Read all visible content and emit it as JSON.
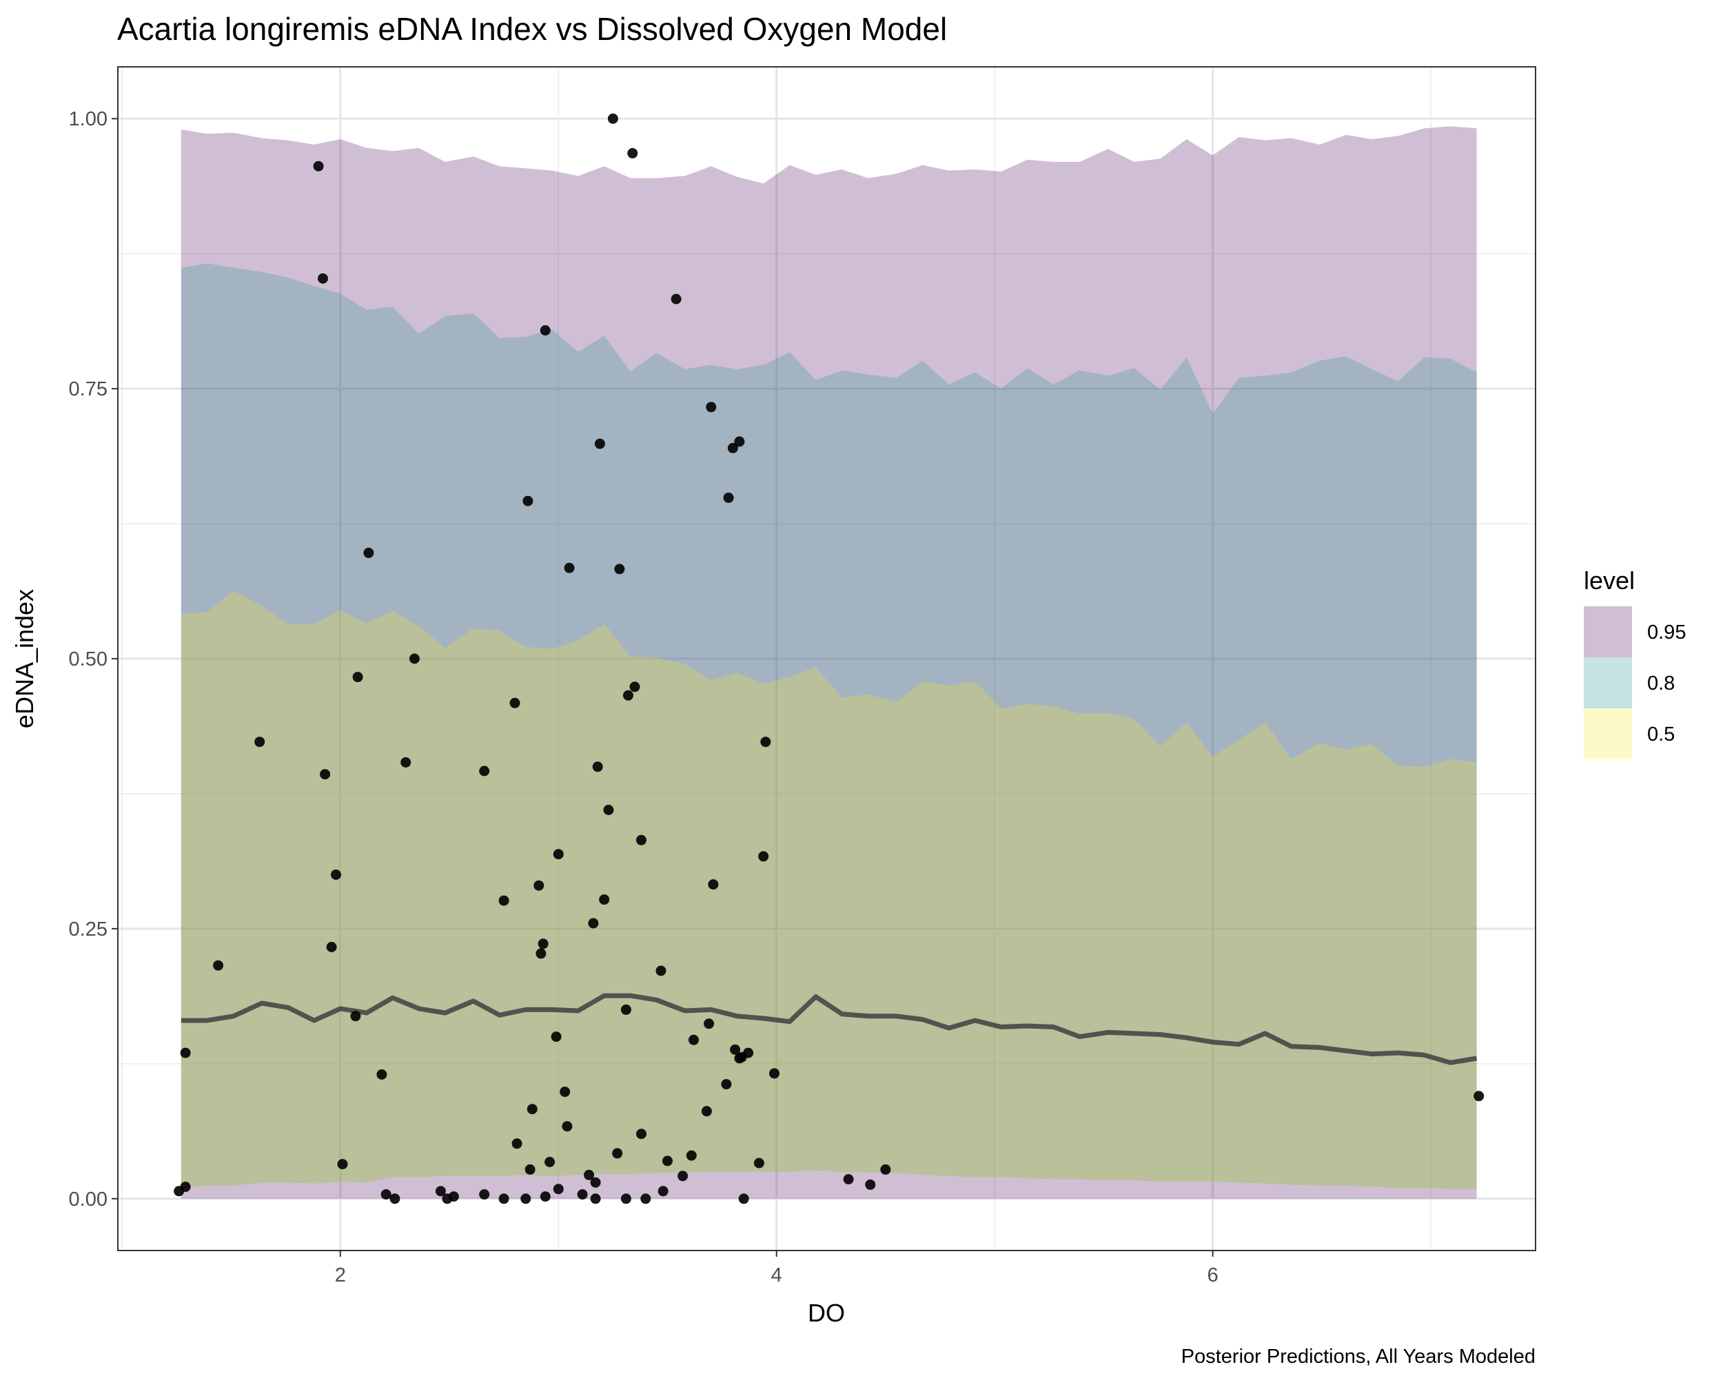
{
  "chart_data": {
    "type": "area",
    "title": "Acartia longiremis eDNA Index vs Dissolved Oxygen Model",
    "xlabel": "DO",
    "ylabel": "eDNA_index",
    "caption": "Posterior Predictions, All Years Modeled",
    "xlim": [
      0.98,
      7.48
    ],
    "ylim": [
      -0.048,
      1.048
    ],
    "x_ticks": [
      2,
      4,
      6
    ],
    "x_tick_labels": [
      "2",
      "4",
      "6"
    ],
    "y_ticks": [
      0.0,
      0.25,
      0.5,
      0.75,
      1.0
    ],
    "y_tick_labels": [
      "0.00",
      "0.25",
      "0.50",
      "0.75",
      "1.00"
    ],
    "grid": true,
    "legend": {
      "title": "level",
      "position": "right",
      "entries": [
        {
          "label": "0.95",
          "color": "#440154"
        },
        {
          "label": "0.8",
          "color": "#21908c"
        },
        {
          "label": "0.5",
          "color": "#fde725"
        }
      ]
    },
    "band_alpha": 0.25,
    "line_color": "#404040",
    "point_color": "#000000",
    "x": [
      1.27,
      1.39,
      1.51,
      1.64,
      1.76,
      1.88,
      2.0,
      2.12,
      2.24,
      2.36,
      2.48,
      2.61,
      2.73,
      2.85,
      2.97,
      3.09,
      3.21,
      3.33,
      3.45,
      3.58,
      3.7,
      3.82,
      3.94,
      4.06,
      4.18,
      4.3,
      4.42,
      4.55,
      4.67,
      4.79,
      4.91,
      5.03,
      5.15,
      5.27,
      5.39,
      5.52,
      5.64,
      5.76,
      5.88,
      6.0,
      6.12,
      6.24,
      6.36,
      6.49,
      6.61,
      6.73,
      6.85,
      6.97,
      7.09,
      7.21
    ],
    "bands": [
      {
        "level": "0.95",
        "color": "#440154",
        "lower": [
          0.0,
          0.0,
          0.0,
          0.0,
          0.0,
          0.0,
          0.0,
          0.0,
          0.0,
          0.0,
          0.0,
          0.0,
          0.0,
          0.0,
          0.0,
          0.0,
          0.0,
          0.0,
          0.0,
          0.0,
          0.0,
          0.0,
          0.0,
          0.0,
          0.0,
          0.0,
          0.0,
          0.0,
          0.0,
          0.0,
          0.0,
          0.0,
          0.0,
          0.0,
          0.0,
          0.0,
          0.0,
          0.0,
          0.0,
          0.0,
          0.0,
          0.0,
          0.0,
          0.0,
          0.0,
          0.0,
          0.0,
          0.0,
          0.0,
          0.0
        ],
        "upper": [
          0.99,
          0.986,
          0.987,
          0.982,
          0.98,
          0.976,
          0.981,
          0.973,
          0.97,
          0.973,
          0.96,
          0.965,
          0.956,
          0.954,
          0.952,
          0.947,
          0.956,
          0.945,
          0.945,
          0.947,
          0.956,
          0.946,
          0.94,
          0.957,
          0.948,
          0.953,
          0.945,
          0.949,
          0.957,
          0.952,
          0.953,
          0.951,
          0.962,
          0.96,
          0.96,
          0.972,
          0.96,
          0.963,
          0.981,
          0.966,
          0.983,
          0.98,
          0.982,
          0.976,
          0.985,
          0.981,
          0.984,
          0.991,
          0.993,
          0.991
        ]
      },
      {
        "level": "0.8",
        "color": "#21908c",
        "lower": [
          0.01,
          0.012,
          0.012,
          0.015,
          0.015,
          0.014,
          0.016,
          0.015,
          0.02,
          0.02,
          0.021,
          0.021,
          0.021,
          0.022,
          0.021,
          0.022,
          0.023,
          0.023,
          0.024,
          0.024,
          0.025,
          0.025,
          0.025,
          0.025,
          0.026,
          0.025,
          0.024,
          0.024,
          0.022,
          0.021,
          0.02,
          0.02,
          0.019,
          0.018,
          0.018,
          0.017,
          0.017,
          0.016,
          0.016,
          0.016,
          0.015,
          0.014,
          0.013,
          0.012,
          0.012,
          0.011,
          0.01,
          0.01,
          0.009,
          0.009
        ],
        "upper": [
          0.862,
          0.866,
          0.862,
          0.858,
          0.853,
          0.845,
          0.838,
          0.823,
          0.826,
          0.801,
          0.817,
          0.82,
          0.797,
          0.798,
          0.805,
          0.784,
          0.799,
          0.766,
          0.783,
          0.768,
          0.772,
          0.768,
          0.772,
          0.784,
          0.758,
          0.767,
          0.763,
          0.76,
          0.776,
          0.754,
          0.765,
          0.75,
          0.769,
          0.754,
          0.767,
          0.762,
          0.769,
          0.749,
          0.779,
          0.727,
          0.76,
          0.762,
          0.765,
          0.776,
          0.78,
          0.768,
          0.757,
          0.779,
          0.778,
          0.765
        ]
      },
      {
        "level": "0.5",
        "color": "#fde725",
        "lower": [
          0.01,
          0.012,
          0.012,
          0.015,
          0.015,
          0.014,
          0.016,
          0.015,
          0.02,
          0.02,
          0.021,
          0.021,
          0.021,
          0.022,
          0.021,
          0.022,
          0.023,
          0.023,
          0.024,
          0.024,
          0.025,
          0.025,
          0.025,
          0.025,
          0.026,
          0.025,
          0.024,
          0.024,
          0.022,
          0.021,
          0.02,
          0.02,
          0.019,
          0.018,
          0.018,
          0.017,
          0.017,
          0.016,
          0.016,
          0.016,
          0.015,
          0.014,
          0.013,
          0.012,
          0.012,
          0.011,
          0.01,
          0.01,
          0.009,
          0.009
        ],
        "upper": [
          0.542,
          0.543,
          0.563,
          0.549,
          0.532,
          0.532,
          0.545,
          0.533,
          0.544,
          0.53,
          0.51,
          0.528,
          0.526,
          0.511,
          0.509,
          0.517,
          0.532,
          0.502,
          0.501,
          0.495,
          0.48,
          0.487,
          0.477,
          0.483,
          0.492,
          0.464,
          0.467,
          0.46,
          0.479,
          0.475,
          0.479,
          0.454,
          0.458,
          0.456,
          0.449,
          0.45,
          0.444,
          0.419,
          0.441,
          0.409,
          0.425,
          0.441,
          0.407,
          0.422,
          0.416,
          0.421,
          0.401,
          0.4,
          0.407,
          0.404
        ]
      }
    ],
    "median": [
      0.165,
      0.165,
      0.169,
      0.181,
      0.177,
      0.165,
      0.176,
      0.172,
      0.186,
      0.176,
      0.172,
      0.183,
      0.17,
      0.175,
      0.175,
      0.174,
      0.188,
      0.188,
      0.184,
      0.174,
      0.175,
      0.169,
      0.167,
      0.164,
      0.187,
      0.171,
      0.169,
      0.169,
      0.166,
      0.158,
      0.165,
      0.159,
      0.16,
      0.159,
      0.15,
      0.154,
      0.153,
      0.152,
      0.149,
      0.145,
      0.143,
      0.153,
      0.141,
      0.14,
      0.137,
      0.134,
      0.135,
      0.133,
      0.126,
      0.13
    ],
    "points": [
      [
        1.26,
        0.007
      ],
      [
        1.29,
        0.135
      ],
      [
        1.29,
        0.011
      ],
      [
        1.44,
        0.216
      ],
      [
        1.63,
        0.423
      ],
      [
        1.9,
        0.956
      ],
      [
        1.92,
        0.852
      ],
      [
        1.93,
        0.393
      ],
      [
        1.96,
        0.233
      ],
      [
        1.98,
        0.3
      ],
      [
        2.01,
        0.032
      ],
      [
        2.07,
        0.169
      ],
      [
        2.08,
        0.483
      ],
      [
        2.13,
        0.598
      ],
      [
        2.19,
        0.115
      ],
      [
        2.21,
        0.004
      ],
      [
        2.25,
        0.0
      ],
      [
        2.3,
        0.404
      ],
      [
        2.34,
        0.5
      ],
      [
        2.46,
        0.007
      ],
      [
        2.49,
        0.0
      ],
      [
        2.52,
        0.002
      ],
      [
        2.66,
        0.396
      ],
      [
        2.66,
        0.004
      ],
      [
        2.75,
        0.276
      ],
      [
        2.75,
        0.0
      ],
      [
        2.8,
        0.459
      ],
      [
        2.81,
        0.051
      ],
      [
        2.85,
        0.0
      ],
      [
        2.86,
        0.646
      ],
      [
        2.87,
        0.027
      ],
      [
        2.88,
        0.083
      ],
      [
        2.91,
        0.29
      ],
      [
        2.92,
        0.227
      ],
      [
        2.93,
        0.236
      ],
      [
        2.94,
        0.804
      ],
      [
        2.94,
        0.002
      ],
      [
        2.96,
        0.034
      ],
      [
        2.99,
        0.15
      ],
      [
        3.0,
        0.319
      ],
      [
        3.0,
        0.009
      ],
      [
        3.03,
        0.099
      ],
      [
        3.04,
        0.067
      ],
      [
        3.05,
        0.584
      ],
      [
        3.11,
        0.004
      ],
      [
        3.14,
        0.022
      ],
      [
        3.16,
        0.255
      ],
      [
        3.17,
        0.015
      ],
      [
        3.17,
        0.0
      ],
      [
        3.18,
        0.4
      ],
      [
        3.19,
        0.699
      ],
      [
        3.21,
        0.277
      ],
      [
        3.23,
        0.36
      ],
      [
        3.25,
        1.0
      ],
      [
        3.27,
        0.042
      ],
      [
        3.28,
        0.583
      ],
      [
        3.31,
        0.0
      ],
      [
        3.31,
        0.175
      ],
      [
        3.32,
        0.466
      ],
      [
        3.34,
        0.968
      ],
      [
        3.35,
        0.474
      ],
      [
        3.38,
        0.06
      ],
      [
        3.38,
        0.332
      ],
      [
        3.4,
        0.0
      ],
      [
        3.47,
        0.211
      ],
      [
        3.48,
        0.007
      ],
      [
        3.5,
        0.035
      ],
      [
        3.54,
        0.833
      ],
      [
        3.57,
        0.021
      ],
      [
        3.61,
        0.04
      ],
      [
        3.62,
        0.147
      ],
      [
        3.68,
        0.081
      ],
      [
        3.69,
        0.162
      ],
      [
        3.7,
        0.733
      ],
      [
        3.71,
        0.291
      ],
      [
        3.77,
        0.106
      ],
      [
        3.78,
        0.649
      ],
      [
        3.8,
        0.695
      ],
      [
        3.81,
        0.138
      ],
      [
        3.83,
        0.701
      ],
      [
        3.83,
        0.13
      ],
      [
        3.84,
        0.131
      ],
      [
        3.85,
        0.0
      ],
      [
        3.87,
        0.135
      ],
      [
        3.92,
        0.033
      ],
      [
        3.94,
        0.317
      ],
      [
        3.95,
        0.423
      ],
      [
        3.99,
        0.116
      ],
      [
        4.33,
        0.018
      ],
      [
        4.43,
        0.013
      ],
      [
        4.5,
        0.027
      ],
      [
        7.22,
        0.095
      ]
    ]
  }
}
